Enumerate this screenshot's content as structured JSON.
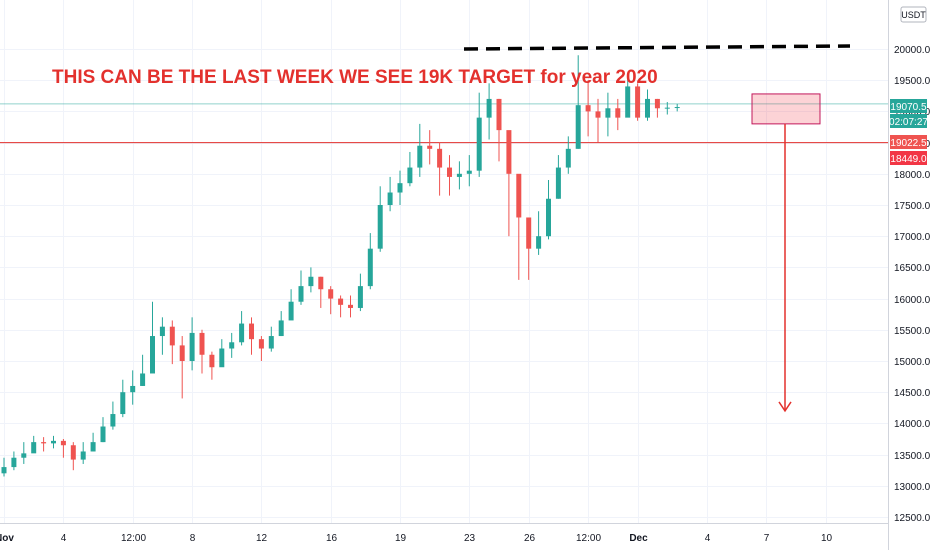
{
  "headline": "THIS CAN BE THE LAST WEEK WE SEE 19K TARGET for year 2020",
  "currency": "USDT",
  "colors": {
    "up": "#26a69a",
    "down": "#ef5350",
    "annotation": "#e3312d",
    "grid": "#f0f3fa",
    "resistance": "#000000"
  },
  "price_labels": {
    "current": "19070.5",
    "countdown": "02:07:27",
    "level_a": "19022.5",
    "level_b": "18449.0"
  },
  "chart_data": {
    "type": "candlestick",
    "title": "",
    "xlabel": "",
    "ylabel": "",
    "ylim": [
      12500,
      20500
    ],
    "grid": true,
    "y_ticks": [
      12500,
      13000,
      13500,
      14000,
      14500,
      15000,
      15500,
      16000,
      16500,
      17000,
      17500,
      18000,
      18500,
      19000,
      19500,
      20000
    ],
    "x_ticks": [
      {
        "label": "Nov",
        "candle": 0,
        "bold": true
      },
      {
        "label": "4",
        "candle": 6
      },
      {
        "label": "12:00",
        "candle": 13
      },
      {
        "label": "8",
        "candle": 19
      },
      {
        "label": "12",
        "candle": 26
      },
      {
        "label": "16",
        "candle": 33
      },
      {
        "label": "19",
        "candle": 40
      },
      {
        "label": "23",
        "candle": 47
      },
      {
        "label": "26",
        "candle": 53
      },
      {
        "label": "12:00",
        "candle": 59
      },
      {
        "label": "Dec",
        "candle": 64,
        "bold": true
      },
      {
        "label": "4",
        "candle": 71
      },
      {
        "label": "7",
        "candle": 77
      },
      {
        "label": "10",
        "candle": 83
      }
    ],
    "series": [
      {
        "close": [
          13300,
          13450,
          13520,
          13700,
          13680,
          13720,
          13650,
          13420,
          13550,
          13700,
          13950,
          14150,
          14500,
          14600,
          14800,
          15400,
          15550,
          15250,
          15000,
          15450,
          15100,
          14900,
          15200,
          15300,
          15600,
          15350,
          15200,
          15400,
          15650,
          15950,
          16200,
          16350,
          16150,
          16000,
          15900,
          15850,
          16200,
          16800,
          17500,
          17700,
          17850,
          18100,
          18450,
          18400,
          18100,
          17950,
          18000,
          18050,
          18900,
          19200,
          18700,
          18000,
          17300,
          16800,
          17000,
          17600,
          18100,
          18400,
          19100,
          19000,
          18900,
          19050,
          18900,
          19400,
          18900,
          19200,
          19050,
          19060,
          19070
        ],
        "high": [
          13450,
          13550,
          13700,
          13800,
          13780,
          13800,
          13750,
          13700,
          13700,
          13850,
          14100,
          14350,
          14700,
          14850,
          15100,
          15950,
          15700,
          15650,
          15400,
          15700,
          15500,
          15150,
          15350,
          15450,
          15800,
          15700,
          15400,
          15550,
          15800,
          16150,
          16450,
          16500,
          16350,
          16200,
          16050,
          16050,
          16400,
          17050,
          17800,
          17950,
          18050,
          18350,
          18800,
          18700,
          18500,
          18300,
          18200,
          18300,
          19300,
          19450,
          19200,
          18600,
          17800,
          17300,
          17400,
          17900,
          18300,
          18600,
          19900,
          19500,
          19200,
          19300,
          19200,
          19600,
          19450,
          19350,
          19200,
          19150,
          19120
        ],
        "low": [
          13150,
          13250,
          13350,
          13550,
          13550,
          13600,
          13450,
          13250,
          13350,
          13550,
          13700,
          13900,
          14100,
          14300,
          14600,
          15000,
          15100,
          14950,
          14400,
          14850,
          14800,
          14700,
          14950,
          15050,
          15250,
          15100,
          15000,
          15150,
          15400,
          15700,
          15900,
          16100,
          15850,
          15750,
          15700,
          15700,
          15800,
          16150,
          16750,
          17400,
          17500,
          17800,
          17950,
          18150,
          17650,
          17650,
          17750,
          17800,
          17950,
          18550,
          18200,
          17000,
          16300,
          16300,
          16700,
          16950,
          17600,
          18000,
          18400,
          18600,
          18500,
          18600,
          18700,
          18950,
          18850,
          18850,
          18900,
          18950,
          19000
        ]
      }
    ],
    "resistance_level": 20000,
    "box": {
      "low": 18800,
      "high": 19280
    },
    "level_lines": [
      19120,
      18500
    ],
    "arrow": {
      "from": 18800,
      "to": 14200
    }
  }
}
